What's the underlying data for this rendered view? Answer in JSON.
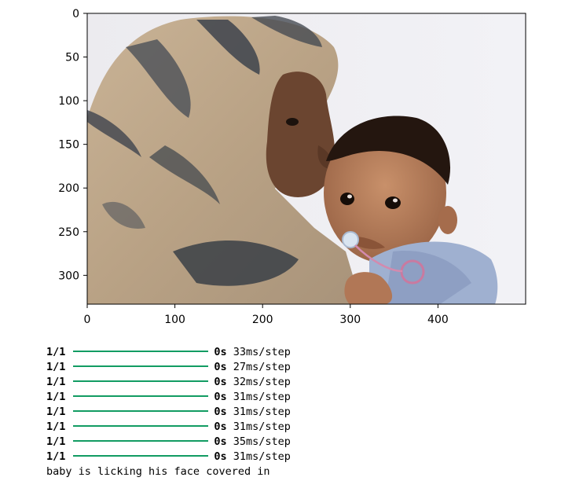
{
  "figure": {
    "image_description_icon": "mother-and-baby-photo",
    "x_axis_ticks": [
      "0",
      "100",
      "200",
      "300",
      "400"
    ],
    "y_axis_ticks": [
      "0",
      "50",
      "100",
      "150",
      "200",
      "250",
      "300"
    ],
    "x_range": [
      0,
      500
    ],
    "y_range": [
      0,
      333
    ]
  },
  "log": {
    "bar_color": "#129c63",
    "lines": [
      {
        "steps": "1/1",
        "duration": "0s",
        "rate": "33ms/step"
      },
      {
        "steps": "1/1",
        "duration": "0s",
        "rate": "27ms/step"
      },
      {
        "steps": "1/1",
        "duration": "0s",
        "rate": "32ms/step"
      },
      {
        "steps": "1/1",
        "duration": "0s",
        "rate": "31ms/step"
      },
      {
        "steps": "1/1",
        "duration": "0s",
        "rate": "31ms/step"
      },
      {
        "steps": "1/1",
        "duration": "0s",
        "rate": "31ms/step"
      },
      {
        "steps": "1/1",
        "duration": "0s",
        "rate": "35ms/step"
      },
      {
        "steps": "1/1",
        "duration": "0s",
        "rate": "31ms/step"
      }
    ],
    "caption": "baby is licking his face covered in"
  }
}
